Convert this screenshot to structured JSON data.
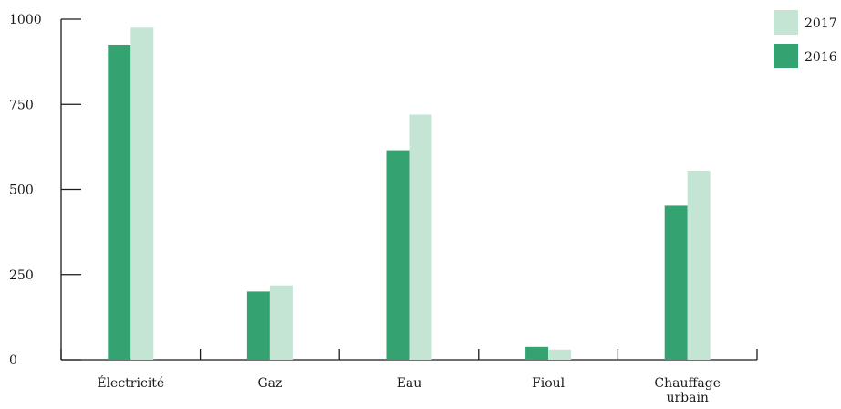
{
  "chart_data": {
    "type": "bar",
    "title": "",
    "xlabel": "",
    "ylabel": "",
    "categories": [
      "Électricité",
      "Gaz",
      "Eau",
      "Fioul",
      "Chauffage urbain"
    ],
    "category_lines": [
      [
        "Électricité"
      ],
      [
        "Gaz"
      ],
      [
        "Eau"
      ],
      [
        "Fioul"
      ],
      [
        "Chauffage",
        "urbain"
      ]
    ],
    "series": [
      {
        "name": "2016",
        "color": "#35a272",
        "values": [
          925,
          200,
          615,
          38,
          452
        ]
      },
      {
        "name": "2017",
        "color": "#c4e4d4",
        "values": [
          975,
          218,
          720,
          30,
          555
        ]
      }
    ],
    "ylim": [
      0,
      1000
    ],
    "yticks": [
      0,
      250,
      500,
      750,
      1000
    ],
    "ytick_labels": [
      "0",
      "250",
      "500",
      "750",
      "1000"
    ],
    "grid": false,
    "legend": {
      "position": "top-right",
      "order": [
        "2017",
        "2016"
      ]
    }
  }
}
